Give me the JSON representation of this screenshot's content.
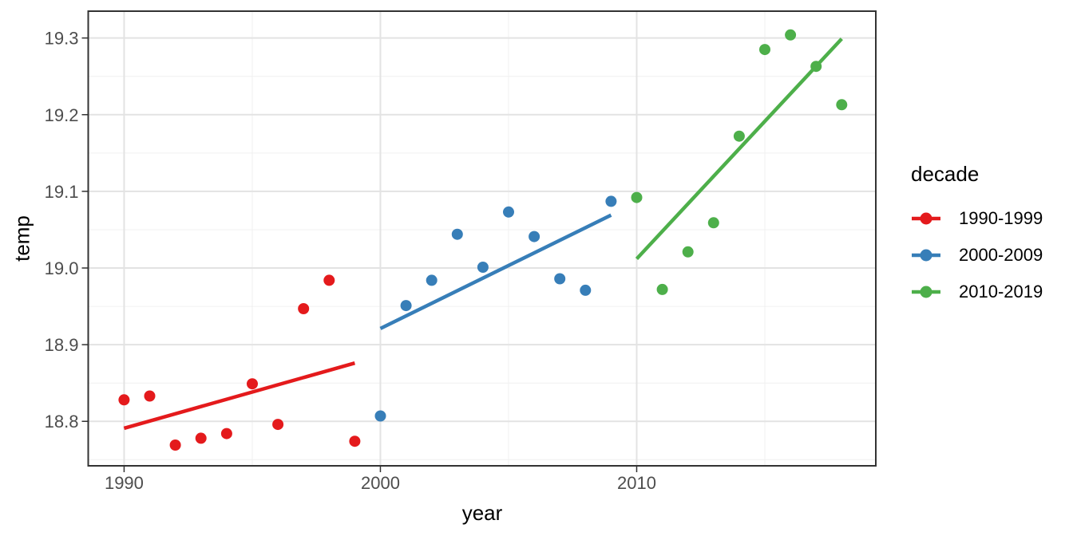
{
  "chart_data": {
    "type": "scatter",
    "title": "",
    "xlabel": "year",
    "ylabel": "temp",
    "grid": true,
    "legend": {
      "title": "decade",
      "position": "right"
    },
    "axes": {
      "x": {
        "lim": [
          1988.6,
          2019.33
        ],
        "major_ticks": [
          {
            "value": 1990,
            "label": "1990"
          },
          {
            "value": 2000,
            "label": "2000"
          },
          {
            "value": 2010,
            "label": "2010"
          }
        ],
        "minor": [
          1995,
          2005,
          2015
        ]
      },
      "y": {
        "lim": [
          18.742,
          19.335
        ],
        "major_ticks": [
          {
            "value": 18.8,
            "label": "18.8"
          },
          {
            "value": 18.9,
            "label": "18.9"
          },
          {
            "value": 19.0,
            "label": "19.0"
          },
          {
            "value": 19.1,
            "label": "19.1"
          },
          {
            "value": 19.2,
            "label": "19.2"
          },
          {
            "value": 19.3,
            "label": "19.3"
          }
        ],
        "minor": [
          18.75,
          18.85,
          18.95,
          19.05,
          19.15,
          19.25
        ]
      }
    },
    "point_radius": 7,
    "series": [
      {
        "name": "1990-1999",
        "color": "#E41A1C",
        "points": [
          [
            1990,
            18.828
          ],
          [
            1991,
            18.833
          ],
          [
            1992,
            18.769
          ],
          [
            1993,
            18.778
          ],
          [
            1994,
            18.784
          ],
          [
            1995,
            18.849
          ],
          [
            1996,
            18.796
          ],
          [
            1997,
            18.947
          ],
          [
            1998,
            18.984
          ],
          [
            1999,
            18.774
          ]
        ],
        "trend": [
          [
            1990,
            18.791
          ],
          [
            1999,
            18.876
          ]
        ]
      },
      {
        "name": "2000-2009",
        "color": "#377EB8",
        "points": [
          [
            2000,
            18.807
          ],
          [
            2001,
            18.951
          ],
          [
            2002,
            18.984
          ],
          [
            2003,
            19.044
          ],
          [
            2004,
            19.001
          ],
          [
            2005,
            19.073
          ],
          [
            2006,
            19.041
          ],
          [
            2007,
            18.986
          ],
          [
            2008,
            18.971
          ],
          [
            2009,
            19.087
          ]
        ],
        "trend": [
          [
            2000,
            18.921
          ],
          [
            2009,
            19.069
          ]
        ]
      },
      {
        "name": "2010-2019",
        "color": "#4DAF4A",
        "points": [
          [
            2010,
            19.092
          ],
          [
            2011,
            18.972
          ],
          [
            2012,
            19.021
          ],
          [
            2013,
            19.059
          ],
          [
            2014,
            19.172
          ],
          [
            2015,
            19.285
          ],
          [
            2016,
            19.304
          ],
          [
            2017,
            19.263
          ],
          [
            2018,
            19.213
          ]
        ],
        "trend": [
          [
            2010,
            19.012
          ],
          [
            2018,
            19.299
          ]
        ]
      }
    ]
  }
}
